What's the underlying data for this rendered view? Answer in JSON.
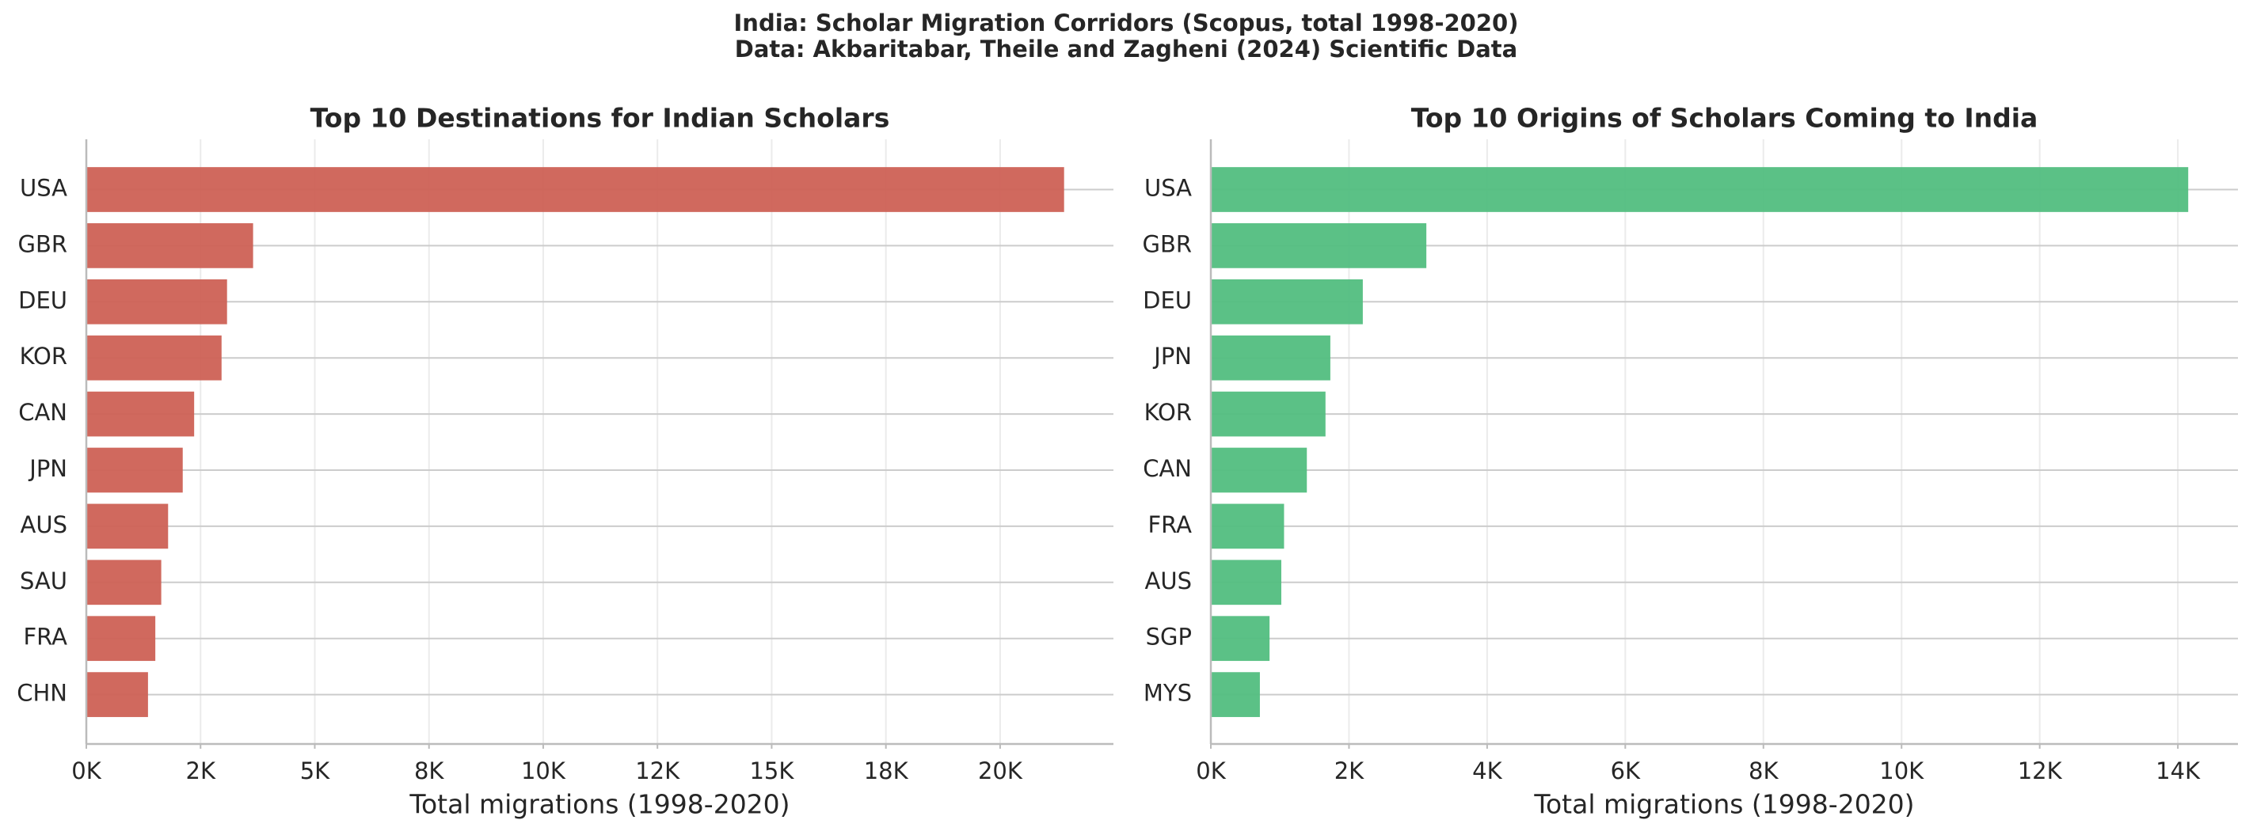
{
  "title": "India: Scholar Migration Corridors (Scopus, total 1998-2020)",
  "subtitle": "Data: Akbaritabar, Theile and Zagheni (2024) Scientific Data",
  "chart_data": [
    {
      "type": "barh",
      "title": "Top 10 Destinations for Indian Scholars",
      "xlabel": "Total migrations (1998-2020)",
      "categories": [
        "USA",
        "GBR",
        "DEU",
        "KOR",
        "CAN",
        "JPN",
        "AUS",
        "SAU",
        "FRA",
        "CHN"
      ],
      "values": [
        21400,
        3650,
        3080,
        2960,
        2360,
        2110,
        1790,
        1640,
        1510,
        1350
      ],
      "color": "#cd6155",
      "xlim": [
        0,
        22480
      ],
      "xticks": [
        {
          "value": 0,
          "label": "0K"
        },
        {
          "value": 2500,
          "label": "2K"
        },
        {
          "value": 5000,
          "label": "5K"
        },
        {
          "value": 7500,
          "label": "8K"
        },
        {
          "value": 10000,
          "label": "10K"
        },
        {
          "value": 12500,
          "label": "12K"
        },
        {
          "value": 15000,
          "label": "15K"
        },
        {
          "value": 17500,
          "label": "18K"
        },
        {
          "value": 20000,
          "label": "20K"
        }
      ],
      "grid": true
    },
    {
      "type": "barh",
      "title": "Top 10 Origins of Scholars Coming to India",
      "xlabel": "Total migrations (1998-2020)",
      "categories": [
        "USA",
        "GBR",
        "DEU",
        "JPN",
        "KOR",
        "CAN",
        "FRA",
        "AUS",
        "SGP",
        "MYS"
      ],
      "values": [
        14150,
        3120,
        2200,
        1730,
        1660,
        1390,
        1060,
        1020,
        850,
        710
      ],
      "color": "#52be80",
      "xlim": [
        0,
        14870
      ],
      "xticks": [
        {
          "value": 0,
          "label": "0K"
        },
        {
          "value": 2000,
          "label": "2K"
        },
        {
          "value": 4000,
          "label": "4K"
        },
        {
          "value": 6000,
          "label": "6K"
        },
        {
          "value": 8000,
          "label": "8K"
        },
        {
          "value": 10000,
          "label": "10K"
        },
        {
          "value": 12000,
          "label": "12K"
        },
        {
          "value": 14000,
          "label": "14K"
        }
      ],
      "grid": true
    }
  ]
}
